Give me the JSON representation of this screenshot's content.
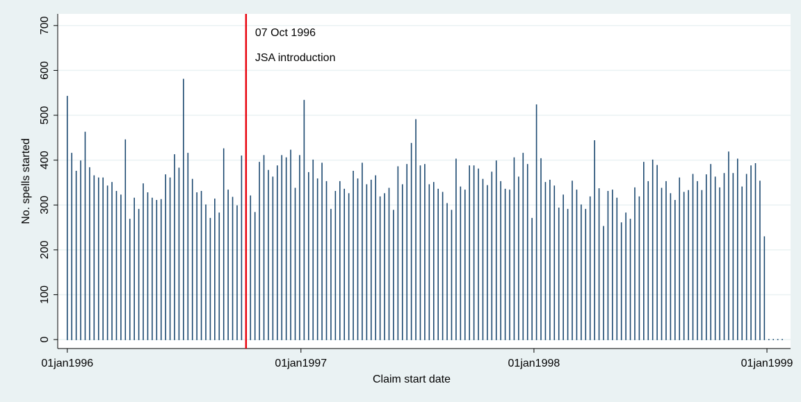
{
  "chart_data": {
    "type": "spike",
    "y_label": "No. spells started",
    "x_label": "Claim start date",
    "color": "#1a476f",
    "grid": true,
    "xlim": [
      "1995-12-17",
      "1999-02-07"
    ],
    "xticks": [
      {
        "value": "1996-01-01",
        "label": "01jan1996"
      },
      {
        "value": "1997-01-01",
        "label": "01jan1997"
      },
      {
        "value": "1998-01-01",
        "label": "01jan1998"
      },
      {
        "value": "1999-01-01",
        "label": "01jan1999"
      }
    ],
    "ylim": [
      -20,
      726
    ],
    "yticks": [
      0,
      100,
      200,
      300,
      400,
      500,
      600,
      700
    ],
    "annotation": {
      "x": "1996-10-07",
      "color": "#e8000b",
      "lines": [
        "07 Oct 1996",
        "JSA introduction"
      ]
    },
    "x": [
      "1996-01-01",
      "1996-01-08",
      "1996-01-15",
      "1996-01-22",
      "1996-01-29",
      "1996-02-05",
      "1996-02-12",
      "1996-02-19",
      "1996-02-26",
      "1996-03-04",
      "1996-03-11",
      "1996-03-18",
      "1996-03-25",
      "1996-04-01",
      "1996-04-08",
      "1996-04-15",
      "1996-04-22",
      "1996-04-29",
      "1996-05-06",
      "1996-05-13",
      "1996-05-20",
      "1996-05-27",
      "1996-06-03",
      "1996-06-10",
      "1996-06-17",
      "1996-06-24",
      "1996-07-01",
      "1996-07-08",
      "1996-07-15",
      "1996-07-22",
      "1996-07-29",
      "1996-08-05",
      "1996-08-12",
      "1996-08-19",
      "1996-08-26",
      "1996-09-02",
      "1996-09-09",
      "1996-09-16",
      "1996-09-23",
      "1996-09-30",
      "1996-10-07",
      "1996-10-14",
      "1996-10-21",
      "1996-10-28",
      "1996-11-04",
      "1996-11-11",
      "1996-11-18",
      "1996-11-25",
      "1996-12-02",
      "1996-12-09",
      "1996-12-16",
      "1996-12-23",
      "1996-12-30",
      "1997-01-06",
      "1997-01-13",
      "1997-01-20",
      "1997-01-27",
      "1997-02-03",
      "1997-02-10",
      "1997-02-17",
      "1997-02-24",
      "1997-03-03",
      "1997-03-10",
      "1997-03-17",
      "1997-03-24",
      "1997-03-31",
      "1997-04-07",
      "1997-04-14",
      "1997-04-21",
      "1997-04-28",
      "1997-05-05",
      "1997-05-12",
      "1997-05-19",
      "1997-05-26",
      "1997-06-02",
      "1997-06-09",
      "1997-06-16",
      "1997-06-23",
      "1997-06-30",
      "1997-07-07",
      "1997-07-14",
      "1997-07-21",
      "1997-07-28",
      "1997-08-04",
      "1997-08-11",
      "1997-08-18",
      "1997-08-25",
      "1997-09-01",
      "1997-09-08",
      "1997-09-15",
      "1997-09-22",
      "1997-09-29",
      "1997-10-06",
      "1997-10-13",
      "1997-10-20",
      "1997-10-27",
      "1997-11-03",
      "1997-11-10",
      "1997-11-17",
      "1997-11-24",
      "1997-12-01",
      "1997-12-08",
      "1997-12-15",
      "1997-12-22",
      "1997-12-29",
      "1998-01-05",
      "1998-01-12",
      "1998-01-19",
      "1998-01-26",
      "1998-02-02",
      "1998-02-09",
      "1998-02-16",
      "1998-02-23",
      "1998-03-02",
      "1998-03-09",
      "1998-03-16",
      "1998-03-23",
      "1998-03-30",
      "1998-04-06",
      "1998-04-13",
      "1998-04-20",
      "1998-04-27",
      "1998-05-04",
      "1998-05-11",
      "1998-05-18",
      "1998-05-25",
      "1998-06-01",
      "1998-06-08",
      "1998-06-15",
      "1998-06-22",
      "1998-06-29",
      "1998-07-06",
      "1998-07-13",
      "1998-07-20",
      "1998-07-27",
      "1998-08-03",
      "1998-08-10",
      "1998-08-17",
      "1998-08-24",
      "1998-08-31",
      "1998-09-07",
      "1998-09-14",
      "1998-09-21",
      "1998-09-28",
      "1998-10-05",
      "1998-10-12",
      "1998-10-19",
      "1998-10-26",
      "1998-11-02",
      "1998-11-09",
      "1998-11-16",
      "1998-11-23",
      "1998-11-30",
      "1998-12-07",
      "1998-12-14",
      "1998-12-21",
      "1998-12-28",
      "1999-01-04",
      "1999-01-11",
      "1999-01-18",
      "1999-01-25"
    ],
    "values": [
      542,
      415,
      375,
      398,
      462,
      383,
      365,
      360,
      360,
      342,
      350,
      330,
      322,
      445,
      268,
      315,
      290,
      347,
      327,
      315,
      310,
      312,
      367,
      360,
      412,
      382,
      580,
      415,
      357,
      327,
      330,
      300,
      270,
      313,
      282,
      425,
      333,
      317,
      298,
      409,
      340,
      320,
      283,
      395,
      410,
      377,
      362,
      387,
      410,
      405,
      422,
      337,
      410,
      533,
      372,
      400,
      358,
      393,
      352,
      290,
      330,
      352,
      335,
      325,
      375,
      358,
      393,
      345,
      355,
      365,
      318,
      325,
      337,
      288,
      385,
      345,
      390,
      437,
      490,
      387,
      390,
      345,
      350,
      335,
      328,
      303,
      288,
      402,
      340,
      333,
      387,
      387,
      380,
      357,
      343,
      373,
      398,
      352,
      335,
      333,
      405,
      362,
      415,
      390,
      270,
      523,
      403,
      350,
      355,
      342,
      293,
      322,
      290,
      353,
      333,
      300,
      290,
      318,
      443,
      336,
      252,
      330,
      333,
      315,
      260,
      282,
      268,
      338,
      318,
      395,
      352,
      400,
      388,
      337,
      352,
      325,
      310,
      360,
      328,
      332,
      368,
      352,
      332,
      367,
      390,
      362,
      338,
      370,
      418,
      370,
      402,
      340,
      368,
      387,
      392,
      353,
      229,
      0,
      0,
      0,
      0
    ]
  }
}
